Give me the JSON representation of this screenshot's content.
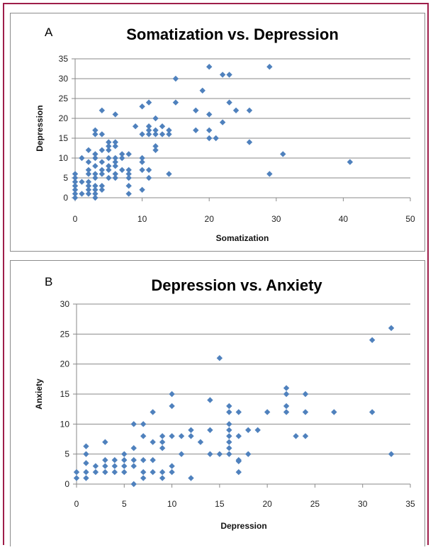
{
  "chart_data": [
    {
      "type": "scatter",
      "panel_label": "A",
      "title": "Somatization vs. Depression",
      "xlabel": "Somatization",
      "ylabel": "Depression",
      "xlim": [
        0,
        50
      ],
      "ylim": [
        0,
        35
      ],
      "xticks": [
        "0",
        "10",
        "20",
        "30",
        "40",
        "50"
      ],
      "yticks": [
        "0",
        "5",
        "10",
        "15",
        "20",
        "25",
        "30",
        "35"
      ],
      "grid": "horizontal",
      "marker_color": "#4f81bd",
      "points": [
        [
          0,
          0
        ],
        [
          0,
          1
        ],
        [
          0,
          2
        ],
        [
          0,
          3
        ],
        [
          0,
          4
        ],
        [
          0,
          5
        ],
        [
          0,
          6
        ],
        [
          1,
          1
        ],
        [
          1,
          4
        ],
        [
          1,
          10
        ],
        [
          2,
          1
        ],
        [
          2,
          2
        ],
        [
          2,
          3
        ],
        [
          2,
          4
        ],
        [
          2,
          6
        ],
        [
          2,
          7
        ],
        [
          2,
          9
        ],
        [
          2,
          12
        ],
        [
          3,
          0
        ],
        [
          3,
          1
        ],
        [
          3,
          2
        ],
        [
          3,
          3
        ],
        [
          3,
          5
        ],
        [
          3,
          6
        ],
        [
          3,
          8
        ],
        [
          3,
          10
        ],
        [
          3,
          11
        ],
        [
          3,
          16
        ],
        [
          3,
          17
        ],
        [
          4,
          2
        ],
        [
          4,
          3
        ],
        [
          4,
          6
        ],
        [
          4,
          7
        ],
        [
          4,
          9
        ],
        [
          4,
          12
        ],
        [
          4,
          16
        ],
        [
          4,
          22
        ],
        [
          5,
          5
        ],
        [
          5,
          7
        ],
        [
          5,
          8
        ],
        [
          5,
          10
        ],
        [
          5,
          12
        ],
        [
          5,
          13
        ],
        [
          5,
          14
        ],
        [
          6,
          5
        ],
        [
          6,
          6
        ],
        [
          6,
          8
        ],
        [
          6,
          9
        ],
        [
          6,
          10
        ],
        [
          6,
          13
        ],
        [
          6,
          14
        ],
        [
          6,
          21
        ],
        [
          7,
          7
        ],
        [
          7,
          10
        ],
        [
          7,
          11
        ],
        [
          8,
          1
        ],
        [
          8,
          3
        ],
        [
          8,
          5
        ],
        [
          8,
          6
        ],
        [
          8,
          7
        ],
        [
          8,
          11
        ],
        [
          9,
          18
        ],
        [
          10,
          2
        ],
        [
          10,
          7
        ],
        [
          10,
          9
        ],
        [
          10,
          10
        ],
        [
          10,
          16
        ],
        [
          10,
          23
        ],
        [
          11,
          5
        ],
        [
          11,
          7
        ],
        [
          11,
          16
        ],
        [
          11,
          17
        ],
        [
          11,
          18
        ],
        [
          11,
          24
        ],
        [
          12,
          12
        ],
        [
          12,
          13
        ],
        [
          12,
          16
        ],
        [
          12,
          17
        ],
        [
          12,
          20
        ],
        [
          13,
          16
        ],
        [
          13,
          18
        ],
        [
          14,
          6
        ],
        [
          14,
          16
        ],
        [
          14,
          17
        ],
        [
          15,
          24
        ],
        [
          15,
          30
        ],
        [
          18,
          17
        ],
        [
          18,
          22
        ],
        [
          19,
          27
        ],
        [
          20,
          15
        ],
        [
          20,
          17
        ],
        [
          20,
          21
        ],
        [
          20,
          33
        ],
        [
          21,
          15
        ],
        [
          22,
          19
        ],
        [
          22,
          31
        ],
        [
          23,
          24
        ],
        [
          23,
          31
        ],
        [
          24,
          22
        ],
        [
          26,
          14
        ],
        [
          26,
          22
        ],
        [
          29,
          6
        ],
        [
          29,
          33
        ],
        [
          31,
          11
        ],
        [
          41,
          9
        ]
      ]
    },
    {
      "type": "scatter",
      "panel_label": "B",
      "title": "Depression vs. Anxiety",
      "xlabel": "Depression",
      "ylabel": "Anxiety",
      "xlim": [
        0,
        35
      ],
      "ylim": [
        0,
        30
      ],
      "xticks": [
        "0",
        "5",
        "10",
        "15",
        "20",
        "25",
        "30",
        "35"
      ],
      "yticks": [
        "0",
        "5",
        "10",
        "15",
        "20",
        "25",
        "30"
      ],
      "grid": "horizontal",
      "marker_color": "#4f81bd",
      "points": [
        [
          0,
          1
        ],
        [
          0,
          2
        ],
        [
          1,
          1
        ],
        [
          1,
          2
        ],
        [
          1,
          3.5
        ],
        [
          1,
          5
        ],
        [
          1,
          6.3
        ],
        [
          2,
          2
        ],
        [
          2,
          3
        ],
        [
          3,
          2
        ],
        [
          3,
          3
        ],
        [
          3,
          4
        ],
        [
          3,
          7
        ],
        [
          4,
          2
        ],
        [
          4,
          3
        ],
        [
          4,
          4
        ],
        [
          5,
          2
        ],
        [
          5,
          3
        ],
        [
          5,
          4
        ],
        [
          5,
          5
        ],
        [
          6,
          0
        ],
        [
          6,
          3
        ],
        [
          6,
          4
        ],
        [
          6,
          6
        ],
        [
          6,
          10
        ],
        [
          7,
          1
        ],
        [
          7,
          2
        ],
        [
          7,
          4
        ],
        [
          7,
          8
        ],
        [
          7,
          10
        ],
        [
          8,
          2
        ],
        [
          8,
          4
        ],
        [
          8,
          7
        ],
        [
          8,
          12
        ],
        [
          9,
          1
        ],
        [
          9,
          2
        ],
        [
          9,
          6
        ],
        [
          9,
          7
        ],
        [
          9,
          8
        ],
        [
          10,
          2
        ],
        [
          10,
          3
        ],
        [
          10,
          8
        ],
        [
          10,
          13
        ],
        [
          10,
          15
        ],
        [
          11,
          5
        ],
        [
          11,
          8
        ],
        [
          12,
          1
        ],
        [
          12,
          8
        ],
        [
          12,
          9
        ],
        [
          13,
          7
        ],
        [
          14,
          5
        ],
        [
          14,
          9
        ],
        [
          14,
          14
        ],
        [
          15,
          5
        ],
        [
          15,
          21
        ],
        [
          16,
          5
        ],
        [
          16,
          6
        ],
        [
          16,
          7
        ],
        [
          16,
          8
        ],
        [
          16,
          9
        ],
        [
          16,
          10
        ],
        [
          16,
          12
        ],
        [
          16,
          13
        ],
        [
          17,
          2
        ],
        [
          17,
          3.8
        ],
        [
          17,
          4
        ],
        [
          17,
          8
        ],
        [
          17,
          12
        ],
        [
          18,
          5
        ],
        [
          18,
          9
        ],
        [
          19,
          9
        ],
        [
          20,
          12
        ],
        [
          22,
          12
        ],
        [
          22,
          13
        ],
        [
          22,
          15
        ],
        [
          22,
          16
        ],
        [
          23,
          8
        ],
        [
          24,
          8
        ],
        [
          24,
          12
        ],
        [
          24,
          15
        ],
        [
          27,
          12
        ],
        [
          31,
          12
        ],
        [
          31,
          24
        ],
        [
          33,
          5
        ],
        [
          33,
          26
        ]
      ]
    }
  ]
}
